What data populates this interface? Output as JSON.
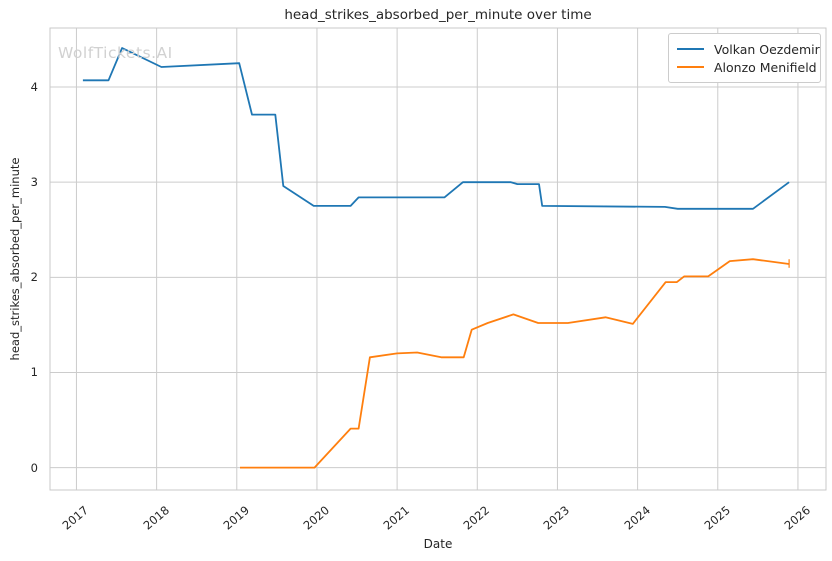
{
  "figure": {
    "title": "head_strikes_absorbed_per_minute over time",
    "xlabel": "Date",
    "ylabel": "head_strikes_absorbed_per_minute",
    "watermark": "WolfTickets.AI"
  },
  "legend": {
    "position": "upper right",
    "items": [
      {
        "label": "Volkan Oezdemir",
        "color": "#1f77b4"
      },
      {
        "label": "Alonzo Menifield",
        "color": "#ff7f0e"
      }
    ]
  },
  "colors": {
    "background": "#ffffff",
    "grid": "#cccccc",
    "spine": "#c9c9c9",
    "text": "#262626",
    "watermark": "#d1d1d1",
    "series_blue": "#1f77b4",
    "series_orange": "#ff7f0e"
  },
  "chart_data": {
    "type": "line",
    "title": "head_strikes_absorbed_per_minute over time",
    "xlabel": "Date",
    "ylabel": "head_strikes_absorbed_per_minute",
    "grid": true,
    "legend_position": "upper right",
    "xlim": [
      2016.67,
      2026.35
    ],
    "ylim": [
      -0.235,
      4.62
    ],
    "xticks": [
      2017,
      2018,
      2019,
      2020,
      2021,
      2022,
      2023,
      2024,
      2025,
      2026
    ],
    "yticks": [
      0,
      1,
      2,
      3,
      4
    ],
    "series": [
      {
        "name": "Volkan Oezdemir",
        "color": "#1f77b4",
        "points": [
          [
            2017.08,
            4.07
          ],
          [
            2017.4,
            4.07
          ],
          [
            2017.57,
            4.41
          ],
          [
            2018.06,
            4.21
          ],
          [
            2019.03,
            4.25
          ],
          [
            2019.19,
            3.71
          ],
          [
            2019.48,
            3.71
          ],
          [
            2019.58,
            2.96
          ],
          [
            2019.96,
            2.75
          ],
          [
            2020.42,
            2.75
          ],
          [
            2020.52,
            2.84
          ],
          [
            2021.59,
            2.84
          ],
          [
            2021.82,
            3.0
          ],
          [
            2022.42,
            3.0
          ],
          [
            2022.5,
            2.98
          ],
          [
            2022.77,
            2.98
          ],
          [
            2022.81,
            2.75
          ],
          [
            2024.34,
            2.74
          ],
          [
            2024.5,
            2.72
          ],
          [
            2025.44,
            2.72
          ],
          [
            2025.89,
            3.0
          ]
        ]
      },
      {
        "name": "Alonzo Menifield",
        "color": "#ff7f0e",
        "points": [
          [
            2019.04,
            0.0
          ],
          [
            2019.97,
            0.0
          ],
          [
            2020.42,
            0.41
          ],
          [
            2020.52,
            0.41
          ],
          [
            2020.66,
            1.16
          ],
          [
            2021.0,
            1.2
          ],
          [
            2021.25,
            1.21
          ],
          [
            2021.55,
            1.16
          ],
          [
            2021.83,
            1.16
          ],
          [
            2021.93,
            1.45
          ],
          [
            2022.13,
            1.52
          ],
          [
            2022.45,
            1.61
          ],
          [
            2022.76,
            1.52
          ],
          [
            2023.13,
            1.52
          ],
          [
            2023.6,
            1.58
          ],
          [
            2023.94,
            1.51
          ],
          [
            2024.35,
            1.95
          ],
          [
            2024.49,
            1.95
          ],
          [
            2024.58,
            2.01
          ],
          [
            2024.88,
            2.01
          ],
          [
            2025.15,
            2.17
          ],
          [
            2025.44,
            2.19
          ],
          [
            2025.89,
            2.14
          ]
        ],
        "end_cap": {
          "x": 2025.89,
          "y_low": 2.1,
          "y_high": 2.19
        }
      }
    ]
  }
}
